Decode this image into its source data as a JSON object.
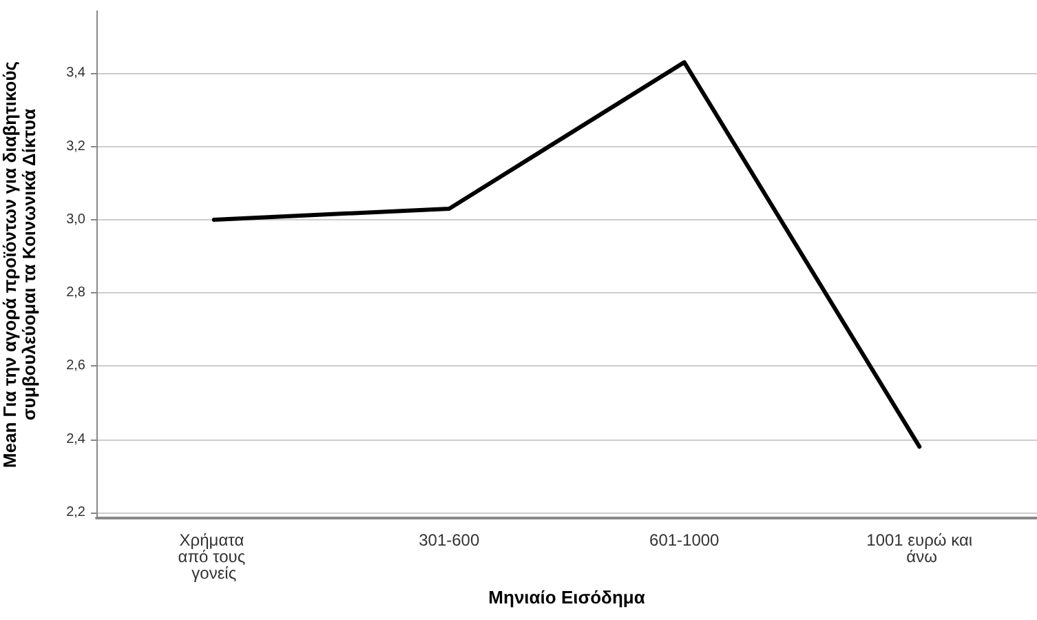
{
  "chart_data": {
    "type": "line",
    "xlabel": "Μηνιαίο Εισόδημα",
    "ylabel": "Mean Για την αγορά προϊόντων για διαβητικούς συμβουλεύομαι τα Κοινωνικά Δίκτυα",
    "categories": [
      "Χρήματα από τους γονείς",
      "301-600",
      "601-1000",
      "1001 ευρώ και άνω"
    ],
    "series": [
      {
        "color": "#000000",
        "values": [
          3.0,
          3.03,
          3.43,
          2.38
        ]
      }
    ],
    "ylim": [
      2.185,
      3.57
    ],
    "yticks": [
      {
        "value": 2.2,
        "label": "2,2"
      },
      {
        "value": 2.4,
        "label": "2,4"
      },
      {
        "value": 2.6,
        "label": "2,6"
      },
      {
        "value": 2.8,
        "label": "2,8"
      },
      {
        "value": 3.0,
        "label": "3,0"
      },
      {
        "value": 3.2,
        "label": "3,2"
      },
      {
        "value": 3.4,
        "label": "3,4"
      }
    ],
    "grid": "y",
    "marker": "none",
    "line_style": "solid"
  }
}
